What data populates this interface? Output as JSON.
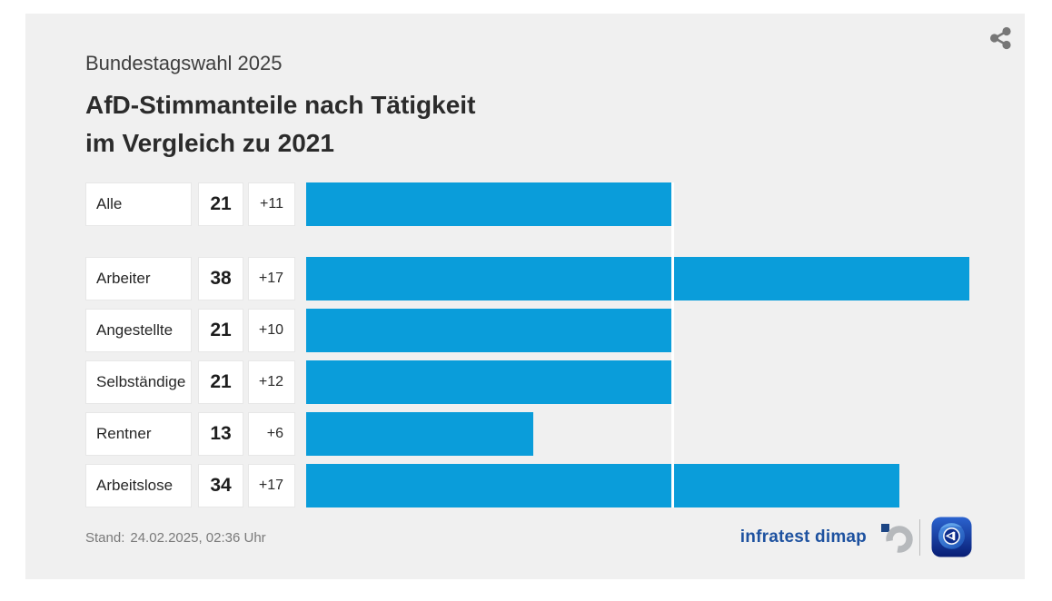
{
  "header": {
    "kicker": "Bundestagswahl 2025",
    "title_line1": "AfD-Stimmanteile nach Tätigkeit",
    "title_line2": "im Vergleich zu 2021"
  },
  "chart_data": {
    "type": "bar",
    "orientation": "horizontal",
    "title": "AfD-Stimmanteile nach Tätigkeit im Vergleich zu 2021",
    "subtitle": "Bundestagswahl 2025",
    "unit": "percent",
    "categories": [
      "Alle",
      "Arbeiter",
      "Angestellte",
      "Selbständige",
      "Rentner",
      "Arbeitslose"
    ],
    "values": [
      21,
      38,
      21,
      21,
      13,
      34
    ],
    "changes_vs_2021": [
      "+11",
      "+17",
      "+10",
      "+12",
      "+6",
      "+17"
    ],
    "group_break_after_index": 0,
    "reference_line_value": 21,
    "xlim": [
      0,
      39
    ],
    "bar_color": "#0a9dda",
    "legend": "none",
    "grid": "off"
  },
  "footer": {
    "stand_label": "Stand:",
    "stand_value": "24.02.2025, 02:36 Uhr",
    "source_name": "infratest dimap"
  },
  "icons": {
    "share": "share-icon",
    "source_mark": "infratest-dimap-logo",
    "broadcaster": "ard-tagesschau-icon"
  }
}
